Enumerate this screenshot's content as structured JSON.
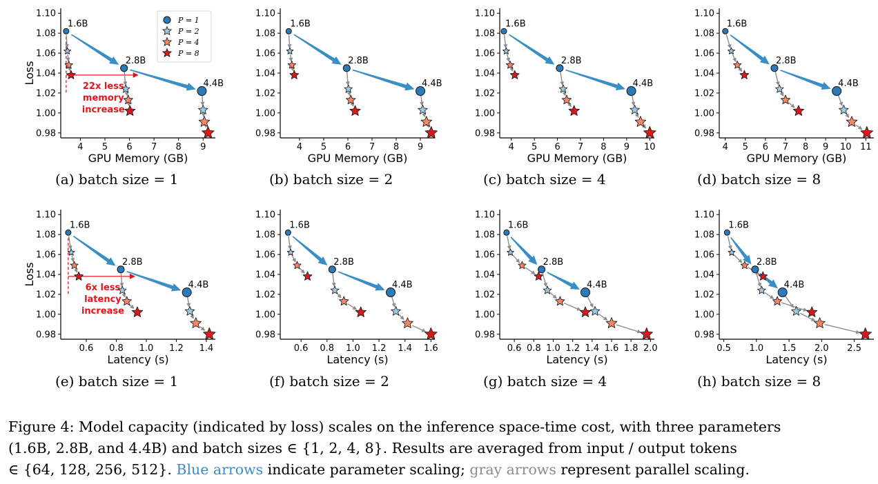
{
  "legend": {
    "title_parallel": "P",
    "entries": [
      {
        "label": "P = 1",
        "color": "#2c7bb6",
        "marker": "circle"
      },
      {
        "label": "P = 2",
        "color": "#9ecae1",
        "marker": "star"
      },
      {
        "label": "P = 4",
        "color": "#f4866a",
        "marker": "star"
      },
      {
        "label": "P = 8",
        "color": "#d7191c",
        "marker": "star"
      }
    ]
  },
  "model_labels": [
    "1.6B",
    "2.8B",
    "4.4B"
  ],
  "colors": {
    "blue_arrow": "#3a8ec6",
    "gray_arrow": "#8c8c8c",
    "annotation": "#e3161b",
    "p1": "#2c7bb6",
    "p2": "#9ecae1",
    "p4": "#f4866a",
    "p8": "#d7191c"
  },
  "chart_data": [
    {
      "type": "scatter",
      "id": "a",
      "caption": "(a) batch size = 1",
      "xlabel": "GPU Memory (GB)",
      "ylabel": "Loss",
      "xlim": [
        3.2,
        9.5
      ],
      "ylim": [
        0.975,
        1.105
      ],
      "xticks": [
        4,
        5,
        6,
        7,
        8,
        9
      ],
      "yticks": [
        0.98,
        1.0,
        1.02,
        1.04,
        1.06,
        1.08,
        1.1
      ],
      "x_tick_labels": [
        "4",
        "5",
        "6",
        "7",
        "8",
        "9"
      ],
      "y_tick_labels": [
        "0.98",
        "1.00",
        "1.02",
        "1.04",
        "1.06",
        "1.08",
        "1.10"
      ],
      "show_ylabel": true,
      "show_legend": true,
      "series": [
        {
          "model": "1.6B",
          "points": [
            [
              3.42,
              1.082
            ],
            [
              3.47,
              1.062
            ],
            [
              3.53,
              1.048
            ],
            [
              3.62,
              1.038
            ]
          ]
        },
        {
          "model": "2.8B",
          "points": [
            [
              5.78,
              1.045
            ],
            [
              5.85,
              1.024
            ],
            [
              5.95,
              1.013
            ],
            [
              6.02,
              1.002
            ]
          ]
        },
        {
          "model": "4.4B",
          "points": [
            [
              8.95,
              1.022
            ],
            [
              9.0,
              1.003
            ],
            [
              9.05,
              0.991
            ],
            [
              9.2,
              0.98
            ]
          ]
        }
      ],
      "annotation": {
        "lines": [
          "22x less",
          "memory",
          "increase"
        ],
        "y": 1.038
      }
    },
    {
      "type": "scatter",
      "id": "b",
      "caption": "(b) batch size = 2",
      "xlabel": "GPU Memory (GB)",
      "ylabel": "",
      "xlim": [
        3.2,
        9.6
      ],
      "ylim": [
        0.975,
        1.105
      ],
      "xticks": [
        4,
        5,
        6,
        7,
        8,
        9
      ],
      "yticks": [
        0.98,
        1.0,
        1.02,
        1.04,
        1.06,
        1.08,
        1.1
      ],
      "x_tick_labels": [
        "4",
        "5",
        "6",
        "7",
        "8",
        "9"
      ],
      "y_tick_labels": [
        "0.98",
        "1.00",
        "1.02",
        "1.04",
        "1.06",
        "1.08",
        "1.10"
      ],
      "show_ylabel": false,
      "show_legend": false,
      "series": [
        {
          "model": "1.6B",
          "points": [
            [
              3.55,
              1.082
            ],
            [
              3.6,
              1.062
            ],
            [
              3.68,
              1.048
            ],
            [
              3.78,
              1.038
            ]
          ]
        },
        {
          "model": "2.8B",
          "points": [
            [
              5.95,
              1.045
            ],
            [
              6.02,
              1.024
            ],
            [
              6.12,
              1.013
            ],
            [
              6.3,
              1.002
            ]
          ]
        },
        {
          "model": "4.4B",
          "points": [
            [
              9.0,
              1.022
            ],
            [
              9.1,
              1.003
            ],
            [
              9.25,
              0.991
            ],
            [
              9.45,
              0.98
            ]
          ]
        }
      ]
    },
    {
      "type": "scatter",
      "id": "c",
      "caption": "(c) batch size = 4",
      "xlabel": "GPU Memory (GB)",
      "ylabel": "",
      "xlim": [
        3.5,
        10.2
      ],
      "ylim": [
        0.975,
        1.105
      ],
      "xticks": [
        4,
        5,
        6,
        7,
        8,
        9,
        10
      ],
      "yticks": [
        0.98,
        1.0,
        1.02,
        1.04,
        1.06,
        1.08,
        1.1
      ],
      "x_tick_labels": [
        "4",
        "5",
        "6",
        "7",
        "8",
        "9",
        "10"
      ],
      "y_tick_labels": [
        "0.98",
        "1.00",
        "1.02",
        "1.04",
        "1.06",
        "1.08",
        "1.10"
      ],
      "show_ylabel": false,
      "show_legend": false,
      "series": [
        {
          "model": "1.6B",
          "points": [
            [
              3.68,
              1.082
            ],
            [
              3.78,
              1.062
            ],
            [
              3.95,
              1.048
            ],
            [
              4.15,
              1.038
            ]
          ]
        },
        {
          "model": "2.8B",
          "points": [
            [
              6.1,
              1.045
            ],
            [
              6.25,
              1.024
            ],
            [
              6.4,
              1.013
            ],
            [
              6.72,
              1.002
            ]
          ]
        },
        {
          "model": "4.4B",
          "points": [
            [
              9.2,
              1.022
            ],
            [
              9.35,
              1.003
            ],
            [
              9.6,
              0.991
            ],
            [
              10.0,
              0.98
            ]
          ]
        }
      ]
    },
    {
      "type": "scatter",
      "id": "d",
      "caption": "(d) batch size = 8",
      "xlabel": "GPU Memory (GB)",
      "ylabel": "",
      "xlim": [
        3.7,
        11.4
      ],
      "ylim": [
        0.975,
        1.105
      ],
      "xticks": [
        4,
        5,
        6,
        7,
        8,
        9,
        10,
        11
      ],
      "yticks": [
        0.98,
        1.0,
        1.02,
        1.04,
        1.06,
        1.08,
        1.1
      ],
      "x_tick_labels": [
        "4",
        "5",
        "6",
        "7",
        "8",
        "9",
        "10",
        "11"
      ],
      "y_tick_labels": [
        "0.98",
        "1.00",
        "1.02",
        "1.04",
        "1.06",
        "1.08",
        "1.10"
      ],
      "show_ylabel": false,
      "show_legend": false,
      "series": [
        {
          "model": "1.6B",
          "points": [
            [
              4.0,
              1.082
            ],
            [
              4.3,
              1.062
            ],
            [
              4.6,
              1.048
            ],
            [
              4.95,
              1.038
            ]
          ]
        },
        {
          "model": "2.8B",
          "points": [
            [
              6.45,
              1.045
            ],
            [
              6.7,
              1.024
            ],
            [
              7.0,
              1.013
            ],
            [
              7.65,
              1.002
            ]
          ]
        },
        {
          "model": "4.4B",
          "points": [
            [
              9.55,
              1.022
            ],
            [
              9.9,
              1.003
            ],
            [
              10.3,
              0.991
            ],
            [
              11.05,
              0.98
            ]
          ]
        }
      ]
    },
    {
      "type": "scatter",
      "id": "e",
      "caption": "(e) batch size = 1",
      "xlabel": "Latency (s)",
      "ylabel": "Loss",
      "xlim": [
        0.43,
        1.46
      ],
      "ylim": [
        0.975,
        1.105
      ],
      "xticks": [
        0.6,
        0.8,
        1.0,
        1.2,
        1.4
      ],
      "yticks": [
        0.98,
        1.0,
        1.02,
        1.04,
        1.06,
        1.08,
        1.1
      ],
      "x_tick_labels": [
        "0.6",
        "0.8",
        "1.0",
        "1.2",
        "1.4"
      ],
      "y_tick_labels": [
        "0.98",
        "1.00",
        "1.02",
        "1.04",
        "1.06",
        "1.08",
        "1.10"
      ],
      "show_ylabel": true,
      "show_legend": false,
      "series": [
        {
          "model": "1.6B",
          "points": [
            [
              0.48,
              1.082
            ],
            [
              0.5,
              1.062
            ],
            [
              0.52,
              1.049
            ],
            [
              0.55,
              1.038
            ]
          ]
        },
        {
          "model": "2.8B",
          "points": [
            [
              0.83,
              1.045
            ],
            [
              0.84,
              1.024
            ],
            [
              0.87,
              1.013
            ],
            [
              0.94,
              1.002
            ]
          ]
        },
        {
          "model": "4.4B",
          "points": [
            [
              1.27,
              1.022
            ],
            [
              1.29,
              1.003
            ],
            [
              1.33,
              0.991
            ],
            [
              1.42,
              0.98
            ]
          ]
        }
      ],
      "annotation": {
        "lines": [
          "6x less",
          "latency",
          "increase"
        ],
        "y": 1.038
      }
    },
    {
      "type": "scatter",
      "id": "f",
      "caption": "(f) batch size = 2",
      "xlabel": "Latency (s)",
      "ylabel": "",
      "xlim": [
        0.44,
        1.63
      ],
      "ylim": [
        0.975,
        1.105
      ],
      "xticks": [
        0.6,
        0.8,
        1.0,
        1.2,
        1.4,
        1.6
      ],
      "yticks": [
        0.98,
        1.0,
        1.02,
        1.04,
        1.06,
        1.08,
        1.1
      ],
      "x_tick_labels": [
        "0.6",
        "0.8",
        "1.0",
        "1.2",
        "1.4",
        "1.6"
      ],
      "y_tick_labels": [
        "0.98",
        "1.00",
        "1.02",
        "1.04",
        "1.06",
        "1.08",
        "1.10"
      ],
      "show_ylabel": false,
      "show_legend": false,
      "series": [
        {
          "model": "1.6B",
          "points": [
            [
              0.5,
              1.082
            ],
            [
              0.52,
              1.062
            ],
            [
              0.57,
              1.049
            ],
            [
              0.65,
              1.038
            ]
          ]
        },
        {
          "model": "2.8B",
          "points": [
            [
              0.84,
              1.045
            ],
            [
              0.86,
              1.024
            ],
            [
              0.93,
              1.013
            ],
            [
              1.06,
              1.002
            ]
          ]
        },
        {
          "model": "4.4B",
          "points": [
            [
              1.29,
              1.022
            ],
            [
              1.33,
              1.003
            ],
            [
              1.42,
              0.991
            ],
            [
              1.6,
              0.98
            ]
          ]
        }
      ]
    },
    {
      "type": "scatter",
      "id": "g",
      "caption": "(g) batch size = 4",
      "xlabel": "Latency (s)",
      "ylabel": "",
      "xlim": [
        0.45,
        2.04
      ],
      "ylim": [
        0.975,
        1.105
      ],
      "xticks": [
        0.6,
        0.8,
        1.0,
        1.2,
        1.4,
        1.6,
        1.8,
        2.0
      ],
      "yticks": [
        0.98,
        1.0,
        1.02,
        1.04,
        1.06,
        1.08,
        1.1
      ],
      "x_tick_labels": [
        "0.6",
        "0.8",
        "1.0",
        "1.2",
        "1.4",
        "1.6",
        "1.8",
        "2.0"
      ],
      "y_tick_labels": [
        "0.98",
        "1.00",
        "1.02",
        "1.04",
        "1.06",
        "1.08",
        "1.10"
      ],
      "show_ylabel": false,
      "show_legend": false,
      "series": [
        {
          "model": "1.6B",
          "points": [
            [
              0.52,
              1.082
            ],
            [
              0.56,
              1.062
            ],
            [
              0.68,
              1.049
            ],
            [
              0.85,
              1.038
            ]
          ]
        },
        {
          "model": "2.8B",
          "points": [
            [
              0.88,
              1.045
            ],
            [
              0.94,
              1.024
            ],
            [
              1.07,
              1.013
            ],
            [
              1.33,
              1.002
            ]
          ]
        },
        {
          "model": "4.4B",
          "points": [
            [
              1.33,
              1.022
            ],
            [
              1.43,
              1.003
            ],
            [
              1.6,
              0.991
            ],
            [
              1.96,
              0.98
            ]
          ]
        }
      ]
    },
    {
      "type": "scatter",
      "id": "h",
      "caption": "(h) batch size = 8",
      "xlabel": "Latency (s)",
      "ylabel": "",
      "xlim": [
        0.43,
        2.8
      ],
      "ylim": [
        0.975,
        1.105
      ],
      "xticks": [
        0.5,
        1.0,
        1.5,
        2.0,
        2.5
      ],
      "yticks": [
        0.98,
        1.0,
        1.02,
        1.04,
        1.06,
        1.08,
        1.1
      ],
      "x_tick_labels": [
        "0.5",
        "1.0",
        "1.5",
        "2.0",
        "2.5"
      ],
      "y_tick_labels": [
        "0.98",
        "1.00",
        "1.02",
        "1.04",
        "1.06",
        "1.08",
        "1.10"
      ],
      "show_ylabel": false,
      "show_legend": false,
      "series": [
        {
          "model": "1.6B",
          "points": [
            [
              0.55,
              1.082
            ],
            [
              0.62,
              1.062
            ],
            [
              0.82,
              1.049
            ],
            [
              1.1,
              1.038
            ]
          ]
        },
        {
          "model": "2.8B",
          "points": [
            [
              0.98,
              1.045
            ],
            [
              1.08,
              1.024
            ],
            [
              1.32,
              1.013
            ],
            [
              1.85,
              1.002
            ]
          ]
        },
        {
          "model": "4.4B",
          "points": [
            [
              1.4,
              1.022
            ],
            [
              1.61,
              1.003
            ],
            [
              1.97,
              0.991
            ],
            [
              2.67,
              0.98
            ]
          ]
        }
      ]
    }
  ],
  "caption": {
    "line1": "Figure 4: Model capacity (indicated by loss) scales on the inference space-time cost, with three parameters",
    "line2": "(1.6B, 2.8B, and 4.4B) and batch sizes ∈ {1, 2, 4, 8}.  Results are averaged from input / output tokens",
    "line3_pre": "∈ {64, 128, 256, 512}.",
    "line3_blue": "Blue arrows",
    "line3_mid": "indicate parameter scaling;",
    "line3_gray": "gray arrows",
    "line3_post": "represent parallel scaling."
  }
}
